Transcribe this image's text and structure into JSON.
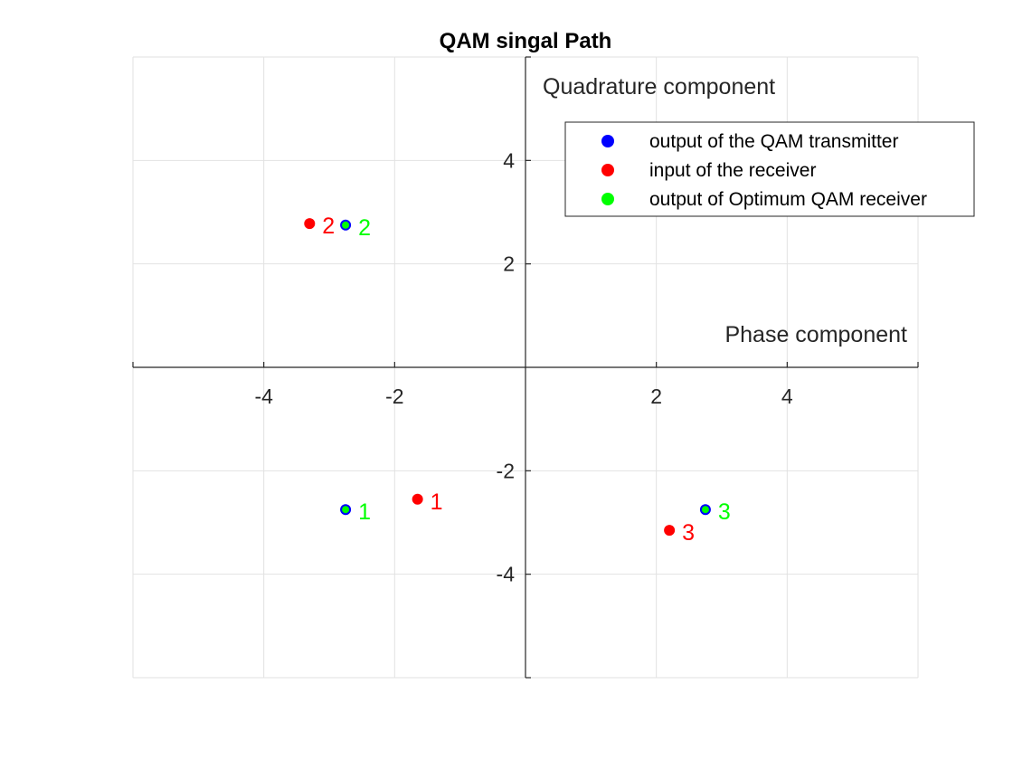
{
  "chart_data": {
    "type": "scatter",
    "title": "QAM singal Path",
    "xlabel": "Phase component",
    "ylabel": "Quadrature component",
    "xlim": [
      -6,
      6
    ],
    "ylim": [
      -6,
      6
    ],
    "xticks": [
      -4,
      -2,
      2,
      4
    ],
    "yticks": [
      4,
      2,
      -2,
      -4
    ],
    "grid": true,
    "legend_position": "top-right",
    "series": [
      {
        "name": "output of the QAM transmitter",
        "color": "#0000ff",
        "points": [
          {
            "x": -2.75,
            "y": -2.75,
            "label": "1"
          },
          {
            "x": -2.75,
            "y": 2.75,
            "label": "2"
          },
          {
            "x": 2.75,
            "y": -2.75,
            "label": "3"
          }
        ]
      },
      {
        "name": "input of the receiver",
        "color": "#ff0000",
        "points": [
          {
            "x": -1.65,
            "y": -2.55,
            "label": "1"
          },
          {
            "x": -3.3,
            "y": 2.78,
            "label": "2"
          },
          {
            "x": 2.2,
            "y": -3.15,
            "label": "3"
          }
        ]
      },
      {
        "name": "output of Optimum QAM receiver",
        "color": "#00ff00",
        "points": [
          {
            "x": -2.75,
            "y": -2.75,
            "label": "1"
          },
          {
            "x": -2.75,
            "y": 2.75,
            "label": "2"
          },
          {
            "x": 2.75,
            "y": -2.75,
            "label": "3"
          }
        ]
      }
    ]
  }
}
